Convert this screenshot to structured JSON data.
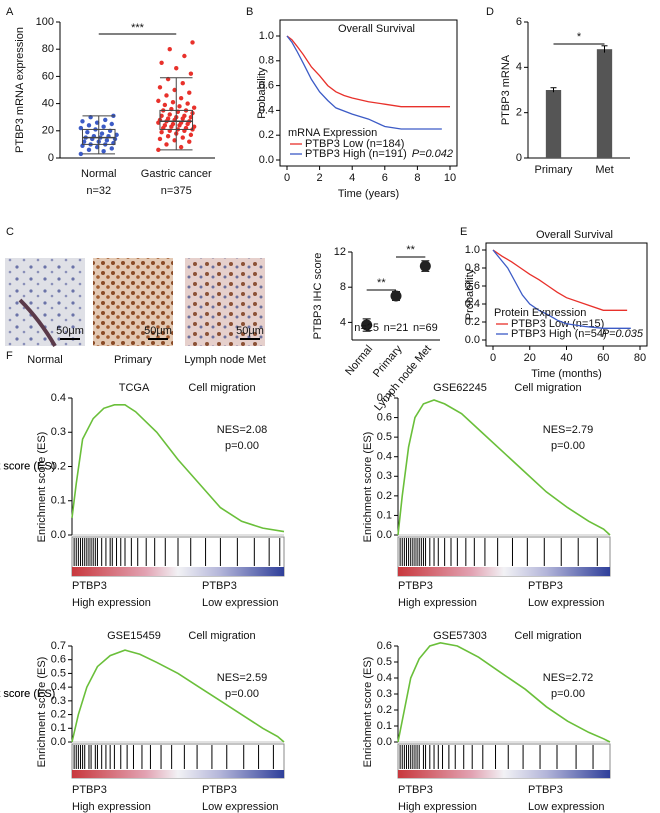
{
  "chart_data": [
    {
      "panel": "A",
      "type": "box",
      "ylabel": "PTBP3 mRNA expression",
      "categories": [
        "Normal",
        "Gastric cancer"
      ],
      "n_labels": [
        "n=32",
        "n=375"
      ],
      "ylim": [
        0,
        100
      ],
      "yticks": [
        0,
        20,
        40,
        60,
        80,
        100
      ],
      "significance": "***",
      "point_colors": [
        "#3c5bc6",
        "#e8312b"
      ],
      "points": [
        [
          3,
          5,
          6,
          7,
          8,
          9,
          10,
          10,
          11,
          12,
          12,
          13,
          14,
          14,
          15,
          15,
          16,
          16,
          17,
          18,
          19,
          20,
          21,
          22,
          23,
          24,
          25,
          26,
          27,
          28,
          30,
          31
        ],
        [
          6,
          8,
          10,
          12,
          13,
          14,
          15,
          16,
          17,
          18,
          19,
          20,
          20,
          21,
          21,
          22,
          22,
          23,
          23,
          24,
          24,
          25,
          25,
          26,
          26,
          27,
          27,
          28,
          28,
          29,
          29,
          30,
          30,
          31,
          31,
          32,
          33,
          34,
          35,
          35,
          36,
          37,
          38,
          39,
          40,
          41,
          42,
          44,
          46,
          48,
          50,
          52,
          55,
          58,
          62,
          66,
          70,
          75,
          80,
          85
        ]
      ],
      "boxes": [
        {
          "min": 3,
          "q1": 10,
          "median": 15,
          "q3": 21,
          "max": 31
        },
        {
          "min": 6,
          "q1": 21,
          "median": 27,
          "q3": 35,
          "max": 59
        }
      ]
    },
    {
      "panel": "B",
      "type": "survival",
      "title": "Overall Survival",
      "xlabel": "Time (years)",
      "ylabel": "Probability",
      "legend_title": "mRNA Expression",
      "p_label": "P=0.042",
      "xlim": [
        0,
        10
      ],
      "xticks": [
        0,
        2,
        4,
        6,
        8,
        10
      ],
      "ylim": [
        0,
        1
      ],
      "yticks": [
        {
          "value": 0,
          "label": "0.0"
        },
        0.2,
        0.4,
        0.6,
        0.8,
        {
          "value": 1,
          "label": "1.0"
        }
      ],
      "series": [
        {
          "name": "PTBP3 Low (n=184)",
          "color": "#e8312b",
          "x": [
            0,
            0.3,
            0.6,
            1,
            1.5,
            2,
            2.5,
            3,
            3.5,
            4,
            5,
            6,
            7,
            8,
            10
          ],
          "values": [
            1,
            0.97,
            0.92,
            0.85,
            0.75,
            0.68,
            0.6,
            0.55,
            0.52,
            0.5,
            0.47,
            0.45,
            0.43,
            0.43,
            0.43
          ]
        },
        {
          "name": "PTBP3 High (n=191)",
          "color": "#3c5bc6",
          "x": [
            0,
            0.3,
            0.6,
            1,
            1.5,
            2,
            2.5,
            3,
            4,
            5,
            6,
            7,
            9.5
          ],
          "values": [
            1,
            0.95,
            0.88,
            0.78,
            0.65,
            0.55,
            0.48,
            0.42,
            0.37,
            0.33,
            0.27,
            0.25,
            0.25
          ]
        }
      ]
    },
    {
      "panel": "D",
      "type": "bar",
      "ylabel": "PTBP3 mRNA",
      "categories": [
        "Primary",
        "Met"
      ],
      "values": [
        3.0,
        4.8
      ],
      "errors": [
        0.1,
        0.15
      ],
      "color": "#555555",
      "ylim": [
        0,
        6
      ],
      "yticks": [
        0,
        2,
        4,
        6
      ],
      "significance": "*"
    },
    {
      "type": "point",
      "ylabel": "PTBP3 IHC score",
      "categories": [
        "Normal",
        "Primary",
        "Lymph node Met"
      ],
      "n_labels": [
        "n=25",
        "n=21",
        "n=69"
      ],
      "values": [
        3.7,
        7.0,
        10.4
      ],
      "errors": [
        0.7,
        0.5,
        0.6
      ],
      "ylim": [
        2,
        12
      ],
      "yticks": [
        4,
        8,
        12
      ],
      "significance": [
        "**",
        "**"
      ]
    },
    {
      "panel": "E",
      "type": "survival",
      "title": "Overall Survival",
      "xlabel": "Time (months)",
      "ylabel": "Probability",
      "legend_title": "Protein Expression",
      "p_label": "P=0.035",
      "xlim": [
        0,
        80
      ],
      "xticks": [
        0,
        20,
        40,
        60,
        80
      ],
      "ylim": [
        0,
        1
      ],
      "yticks": [
        {
          "value": 0,
          "label": "0.0"
        },
        0.2,
        0.4,
        0.6,
        0.8,
        {
          "value": 1,
          "label": "1.0"
        }
      ],
      "series": [
        {
          "name": "PTBP3 Low (n=15)",
          "color": "#e8312b",
          "x": [
            0,
            5,
            10,
            15,
            20,
            25,
            30,
            35,
            40,
            50,
            60,
            73
          ],
          "values": [
            1,
            0.93,
            0.87,
            0.8,
            0.73,
            0.67,
            0.6,
            0.53,
            0.47,
            0.4,
            0.33,
            0.33
          ]
        },
        {
          "name": "PTBP3 High (n=54)",
          "color": "#3c5bc6",
          "x": [
            0,
            4,
            8,
            12,
            16,
            20,
            25,
            30,
            35,
            40,
            50,
            60,
            75
          ],
          "values": [
            1,
            0.9,
            0.8,
            0.65,
            0.5,
            0.4,
            0.33,
            0.28,
            0.22,
            0.18,
            0.15,
            0.13,
            0.13
          ]
        }
      ]
    },
    {
      "panel": "F",
      "type": "gsea",
      "dataset": "TCGA",
      "title": "Cell migration",
      "nes_label": "NES=2.08",
      "p_label": "p=0.00",
      "ylabel": "Enrichment score (ES)",
      "xlim": [
        0,
        100
      ],
      "ylim": [
        0,
        0.4
      ],
      "yticks": [
        {
          "value": 0,
          "label": "0.0"
        },
        0.1,
        0.2,
        0.3,
        0.4
      ],
      "series": [
        {
          "color": "#6abf3a",
          "x": [
            0,
            2,
            5,
            10,
            15,
            20,
            25,
            30,
            40,
            50,
            60,
            70,
            80,
            90,
            100
          ],
          "values": [
            0.05,
            0.15,
            0.28,
            0.34,
            0.37,
            0.38,
            0.38,
            0.36,
            0.3,
            0.22,
            0.15,
            0.08,
            0.04,
            0.02,
            0.01
          ]
        }
      ],
      "hits": [
        1,
        2,
        3,
        4,
        5,
        6,
        7,
        8,
        9,
        10,
        11,
        12,
        14,
        16,
        18,
        19,
        21,
        23,
        25,
        28,
        31,
        35,
        39,
        44,
        50,
        56,
        63,
        70,
        78,
        86,
        93,
        98
      ],
      "left_labels": [
        "PTBP3",
        "High expression"
      ],
      "right_labels": [
        "PTBP3",
        "Low expression"
      ]
    },
    {
      "type": "gsea",
      "dataset": "GSE62245",
      "title": "Cell migration",
      "nes_label": "NES=2.79",
      "p_label": "p=0.00",
      "ylabel": "Enrichment score (ES)",
      "xlim": [
        0,
        100
      ],
      "ylim": [
        0,
        0.7
      ],
      "yticks": [
        {
          "value": 0,
          "label": "0.0"
        },
        0.1,
        0.2,
        0.3,
        0.4,
        0.5,
        0.6,
        0.7
      ],
      "series": [
        {
          "color": "#6abf3a",
          "x": [
            0,
            2,
            5,
            8,
            12,
            17,
            22,
            30,
            40,
            50,
            60,
            70,
            80,
            90,
            97,
            100
          ],
          "values": [
            0,
            0.2,
            0.45,
            0.6,
            0.67,
            0.69,
            0.67,
            0.62,
            0.52,
            0.42,
            0.32,
            0.22,
            0.14,
            0.07,
            0.03,
            0
          ]
        }
      ],
      "hits": [
        1,
        2,
        3,
        4,
        5,
        6,
        7,
        8,
        9,
        10,
        11,
        12,
        13,
        15,
        17,
        19,
        22,
        25,
        28,
        32,
        36,
        41,
        47,
        54,
        61,
        69,
        77,
        85,
        94
      ],
      "left_labels": [
        "PTBP3",
        "High expression"
      ],
      "right_labels": [
        "PTBP3",
        "Low expression"
      ]
    },
    {
      "type": "gsea",
      "dataset": "GSE15459",
      "title": "Cell migration",
      "nes_label": "NES=2.59",
      "p_label": "p=0.00",
      "ylabel": "Enrichment score (ES)",
      "xlim": [
        0,
        100
      ],
      "ylim": [
        0,
        0.7
      ],
      "yticks": [
        {
          "value": 0,
          "label": "0.0"
        },
        0.1,
        0.2,
        0.3,
        0.4,
        0.5,
        0.6,
        0.7
      ],
      "series": [
        {
          "color": "#6abf3a",
          "x": [
            0,
            3,
            7,
            12,
            18,
            25,
            32,
            40,
            50,
            60,
            70,
            80,
            90,
            97,
            100
          ],
          "values": [
            0,
            0.2,
            0.4,
            0.55,
            0.63,
            0.67,
            0.64,
            0.58,
            0.5,
            0.4,
            0.3,
            0.2,
            0.1,
            0.04,
            0
          ]
        }
      ],
      "hits": [
        1,
        2,
        3,
        4,
        5,
        6,
        8,
        9,
        11,
        12,
        14,
        16,
        18,
        20,
        23,
        26,
        29,
        33,
        37,
        42,
        47,
        53,
        59,
        66,
        73,
        81,
        88,
        95
      ],
      "left_labels": [
        "PTBP3",
        "High expression"
      ],
      "right_labels": [
        "PTBP3",
        "Low expression"
      ]
    },
    {
      "type": "gsea",
      "dataset": "GSE57303",
      "title": "Cell migration",
      "nes_label": "NES=2.72",
      "p_label": "p=0.00",
      "ylabel": "Enrichment score (ES)",
      "xlim": [
        0,
        100
      ],
      "ylim": [
        0,
        0.6
      ],
      "yticks": [
        {
          "value": 0,
          "label": "0.0"
        },
        0.1,
        0.2,
        0.3,
        0.4,
        0.5,
        0.6
      ],
      "series": [
        {
          "color": "#6abf3a",
          "x": [
            0,
            3,
            6,
            10,
            15,
            20,
            28,
            38,
            50,
            60,
            70,
            80,
            90,
            97,
            100
          ],
          "values": [
            0,
            0.2,
            0.4,
            0.52,
            0.6,
            0.62,
            0.6,
            0.53,
            0.42,
            0.33,
            0.22,
            0.13,
            0.06,
            0.02,
            0
          ]
        }
      ],
      "hits": [
        1,
        2,
        3,
        4,
        5,
        6,
        7,
        8,
        9,
        10,
        12,
        13,
        15,
        17,
        19,
        21,
        24,
        27,
        31,
        35,
        40,
        46,
        52,
        59,
        67,
        75,
        84,
        92
      ],
      "left_labels": [
        "PTBP3",
        "High expression"
      ],
      "right_labels": [
        "PTBP3",
        "Low expression"
      ]
    }
  ],
  "images": {
    "panel": "C",
    "labels": [
      "Normal",
      "Primary",
      "Lymph node Met"
    ],
    "scale_bar": "50μm"
  }
}
